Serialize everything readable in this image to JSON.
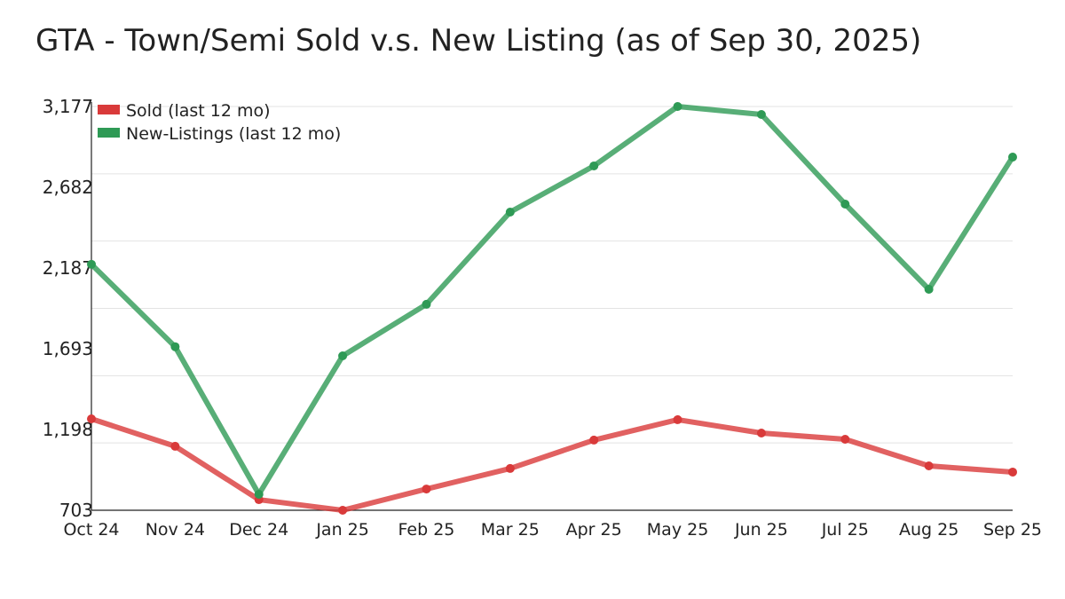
{
  "chart_data": {
    "type": "line",
    "title": "GTA - Town/Semi Sold v.s. New Listing (as of Sep 30, 2025)",
    "xlabel": "",
    "ylabel": "",
    "categories": [
      "Oct 24",
      "Nov 24",
      "Dec 24",
      "Jan 25",
      "Feb 25",
      "Mar 25",
      "Apr 25",
      "May 25",
      "Jun 25",
      "Jul 25",
      "Aug 25",
      "Sep 25"
    ],
    "ylim": [
      703,
      3177
    ],
    "yticks": [
      703,
      1198,
      1693,
      2187,
      2682,
      3177
    ],
    "ytick_labels": [
      "703",
      "1,198",
      "1,693",
      "2,187",
      "2,682",
      "3,177"
    ],
    "grid": true,
    "legend_position": "top-left",
    "series": [
      {
        "name": "Sold (last 12 mo)",
        "color": "#d93a3a",
        "values": [
          1263,
          1095,
          768,
          703,
          833,
          959,
          1133,
          1258,
          1176,
          1138,
          975,
          937
        ]
      },
      {
        "name": "New-Listings (last 12 mo)",
        "color": "#2e9a55",
        "values": [
          2210,
          1705,
          801,
          1649,
          1965,
          2530,
          2813,
          3177,
          3128,
          2579,
          2057,
          2867
        ]
      }
    ]
  }
}
